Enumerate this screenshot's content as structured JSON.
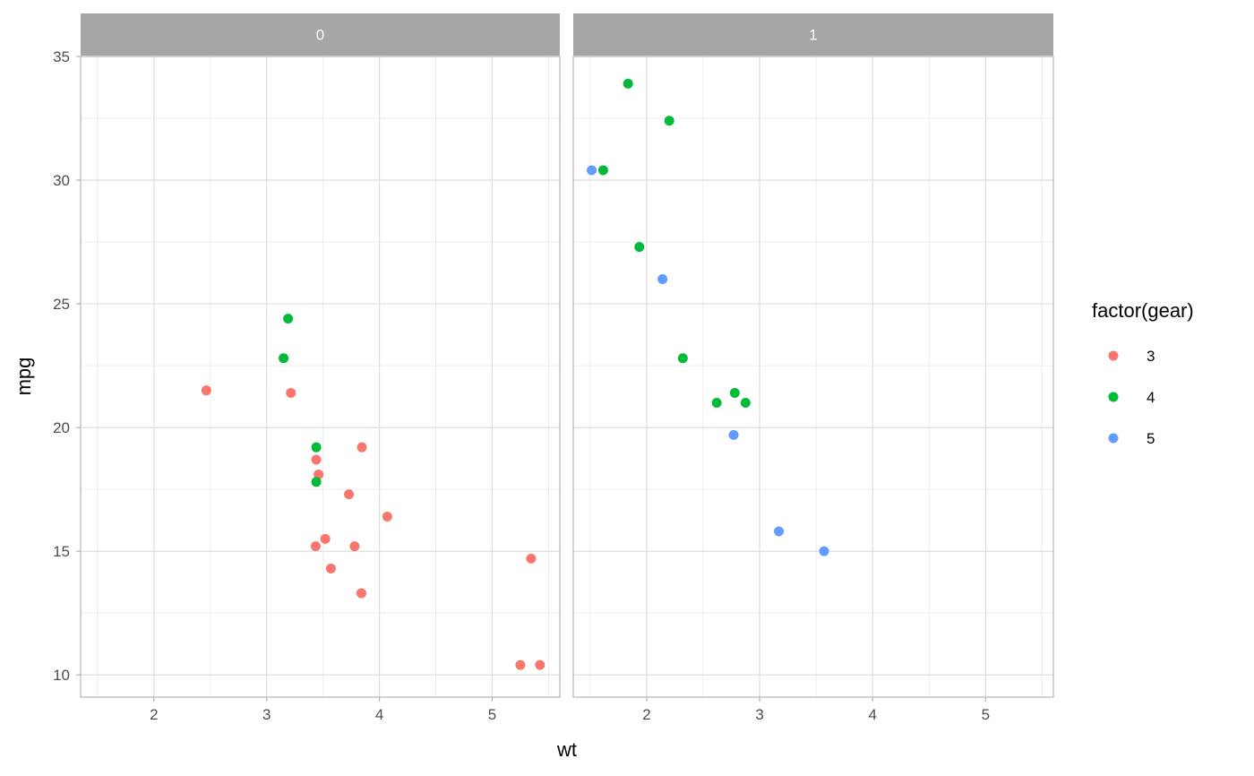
{
  "chart_data": {
    "type": "scatter",
    "xlabel": "wt",
    "ylabel": "mpg",
    "xlim": [
      1.35,
      5.6
    ],
    "ylim": [
      9.1,
      35.0
    ],
    "x_ticks": [
      2,
      3,
      4,
      5
    ],
    "y_ticks": [
      10,
      15,
      20,
      25,
      30,
      35
    ],
    "grid": true,
    "legend": {
      "title": "factor(gear)",
      "position": "right"
    },
    "facets": [
      {
        "label": "0",
        "series": [
          {
            "name": "3",
            "color": "#F8766D",
            "points": [
              [
                2.465,
                21.5
              ],
              [
                3.215,
                21.4
              ],
              [
                3.44,
                18.7
              ],
              [
                3.46,
                18.1
              ],
              [
                3.57,
                14.3
              ],
              [
                4.07,
                16.4
              ],
              [
                3.73,
                17.3
              ],
              [
                3.78,
                15.2
              ],
              [
                5.25,
                10.4
              ],
              [
                5.424,
                10.4
              ],
              [
                5.345,
                14.7
              ],
              [
                3.52,
                15.5
              ],
              [
                3.435,
                15.2
              ],
              [
                3.84,
                13.3
              ],
              [
                3.845,
                19.2
              ]
            ]
          },
          {
            "name": "4",
            "color": "#00BA38",
            "points": [
              [
                3.19,
                24.4
              ],
              [
                3.15,
                22.8
              ],
              [
                3.44,
                19.2
              ],
              [
                3.44,
                17.8
              ]
            ]
          },
          {
            "name": "5",
            "color": "#619CFF",
            "points": []
          }
        ]
      },
      {
        "label": "1",
        "series": [
          {
            "name": "3",
            "color": "#F8766D",
            "points": []
          },
          {
            "name": "4",
            "color": "#00BA38",
            "points": [
              [
                2.62,
                21.0
              ],
              [
                2.875,
                21.0
              ],
              [
                2.32,
                22.8
              ],
              [
                2.2,
                32.4
              ],
              [
                1.615,
                30.4
              ],
              [
                1.835,
                33.9
              ],
              [
                1.935,
                27.3
              ],
              [
                2.78,
                21.4
              ]
            ]
          },
          {
            "name": "5",
            "color": "#619CFF",
            "points": [
              [
                2.14,
                26.0
              ],
              [
                1.513,
                30.4
              ],
              [
                3.17,
                15.8
              ],
              [
                2.77,
                19.7
              ],
              [
                3.57,
                15.0
              ]
            ]
          }
        ]
      }
    ]
  },
  "colors": {
    "strip_bg": "#A6A6A6",
    "panel_border": "#B3B3B3",
    "grid_major": "#DEDEDE",
    "grid_minor": "#EDEDED"
  }
}
